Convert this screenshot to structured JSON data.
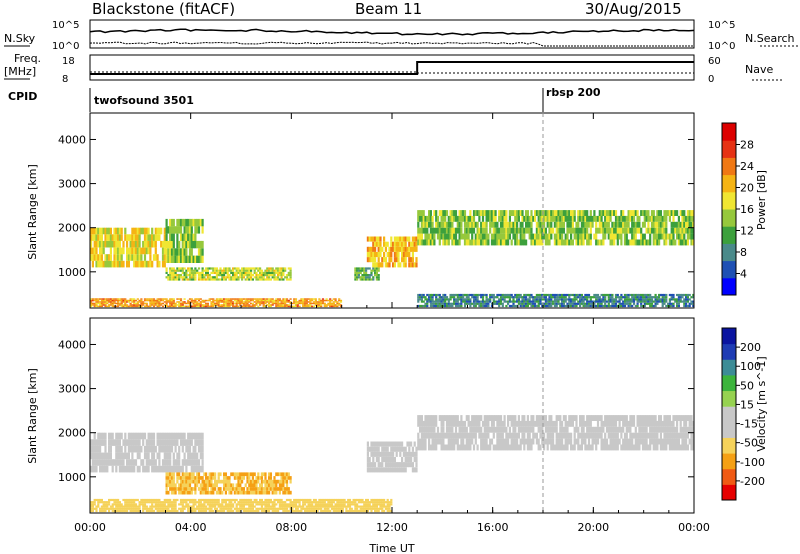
{
  "header": {
    "radar": "Blackstone (fitACF)",
    "beam": "Beam 11",
    "date": "30/Aug/2015"
  },
  "panel_labels": {
    "nsky": "N.Sky",
    "nsearch": "N.Search",
    "freq_line1": "Freq.",
    "freq_line2": "[MHz]",
    "nave": "Nave",
    "cpid": "CPID",
    "nsky_ticks": [
      "10^5",
      "10^0"
    ],
    "nsearch_ticks": [
      "10^5",
      "10^0"
    ],
    "freq_ticks": [
      "18",
      "8"
    ],
    "nave_ticks": [
      "60",
      "0"
    ]
  },
  "cpid_programs": [
    {
      "name": "twofsound 3501",
      "start_hour": 0
    },
    {
      "name": "rbsp 200",
      "start_hour": 18
    }
  ],
  "time_axis": {
    "label": "Time UT",
    "range_hours": [
      0,
      24
    ],
    "ticks": [
      "00:00",
      "04:00",
      "08:00",
      "12:00",
      "16:00",
      "20:00",
      "00:00"
    ]
  },
  "chart_data": [
    {
      "type": "heatmap",
      "name": "power-panel",
      "ylabel": "Slant Range [km]",
      "ylim": [
        180,
        4600
      ],
      "yticks": [
        "1000",
        "2000",
        "3000",
        "4000"
      ],
      "colorbar": {
        "label": "Power [dB]",
        "ticks": [
          "4",
          "8",
          "12",
          "16",
          "20",
          "24",
          "28"
        ],
        "range": [
          0,
          32
        ],
        "colors": [
          "#0000ff",
          "#1e50b4",
          "#4a8a8a",
          "#3ca03c",
          "#96c83c",
          "#f0e632",
          "#f5b414",
          "#f07814",
          "#e63214",
          "#dc0000"
        ]
      },
      "regions": [
        {
          "t0": 0.0,
          "t1": 3.0,
          "r0": 1100,
          "r1": 2000,
          "value": 18
        },
        {
          "t0": 3.0,
          "t1": 4.5,
          "r0": 1200,
          "r1": 2200,
          "value": 14
        },
        {
          "t0": 3.0,
          "t1": 8.0,
          "r0": 800,
          "r1": 1100,
          "value": 16
        },
        {
          "t0": 0.0,
          "t1": 10.0,
          "r0": 200,
          "r1": 400,
          "value": 22
        },
        {
          "t0": 10.5,
          "t1": 11.5,
          "r0": 800,
          "r1": 1100,
          "value": 12
        },
        {
          "t0": 11.0,
          "t1": 13.0,
          "r0": 1100,
          "r1": 1800,
          "value": 20
        },
        {
          "t0": 13.0,
          "t1": 24.0,
          "r0": 1600,
          "r1": 2400,
          "value": 14
        },
        {
          "t0": 13.0,
          "t1": 24.0,
          "r0": 200,
          "r1": 500,
          "value": 8
        }
      ]
    },
    {
      "type": "heatmap",
      "name": "velocity-panel",
      "ylabel": "Slant Range [km]",
      "ylim": [
        180,
        4600
      ],
      "yticks": [
        "1000",
        "2000",
        "3000",
        "4000"
      ],
      "colorbar": {
        "label": "Velocity [m s^-1]",
        "ticks": [
          "-200",
          "-100",
          "-50",
          "-15",
          "15",
          "50",
          "100",
          "200"
        ],
        "colors": [
          "#e60000",
          "#f05a14",
          "#f5a014",
          "#f5d25a",
          "#c8c8c8",
          "#c8c8c8",
          "#96d250",
          "#3cb43c",
          "#3c8c96",
          "#1e3cb4",
          "#0a14a0"
        ]
      },
      "regions": [
        {
          "t0": 0.0,
          "t1": 4.5,
          "r0": 1100,
          "r1": 2000,
          "value": 0
        },
        {
          "t0": 3.0,
          "t1": 8.0,
          "r0": 600,
          "r1": 1100,
          "value": -50
        },
        {
          "t0": 0.0,
          "t1": 12.0,
          "r0": 200,
          "r1": 500,
          "value": -40
        },
        {
          "t0": 11.0,
          "t1": 13.0,
          "r0": 1100,
          "r1": 1800,
          "value": 0
        },
        {
          "t0": 13.0,
          "t1": 24.0,
          "r0": 1600,
          "r1": 2400,
          "value": 0
        }
      ]
    }
  ]
}
